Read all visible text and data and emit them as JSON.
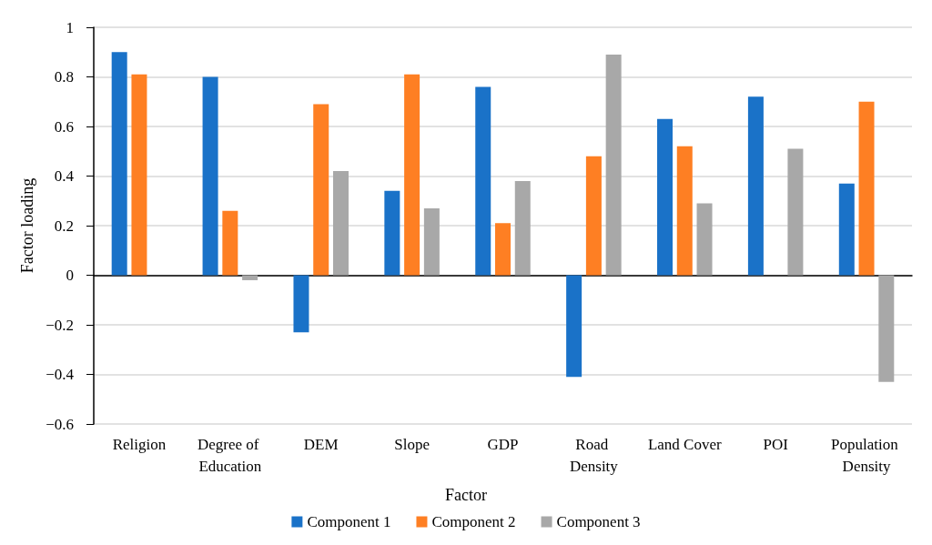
{
  "chart_data": {
    "type": "bar",
    "xlabel": "Factor",
    "ylabel": "Factor loading",
    "categories": [
      "Religion",
      "Degree of Education",
      "DEM",
      "Slope",
      "GDP",
      "Road Density",
      "Land Cover",
      "POI",
      "Population Density"
    ],
    "series": [
      {
        "name": "Component 1",
        "color": "#1a72c8",
        "values": [
          0.9,
          0.8,
          -0.23,
          0.34,
          0.76,
          -0.41,
          0.63,
          0.72,
          0.37
        ]
      },
      {
        "name": "Component 2",
        "color": "#fe7f23",
        "values": [
          0.81,
          0.26,
          0.69,
          0.81,
          0.21,
          0.48,
          0.52,
          null,
          0.7
        ]
      },
      {
        "name": "Component 3",
        "color": "#a8a8a8",
        "values": [
          null,
          -0.02,
          0.42,
          0.27,
          0.38,
          0.89,
          0.29,
          0.51,
          -0.43
        ]
      }
    ],
    "ylim": [
      -0.6,
      1
    ],
    "yticks": [
      -0.6,
      -0.4,
      -0.2,
      0,
      0.2,
      0.4,
      0.6,
      0.8,
      1
    ],
    "grid": "y",
    "legend": "bottom"
  }
}
